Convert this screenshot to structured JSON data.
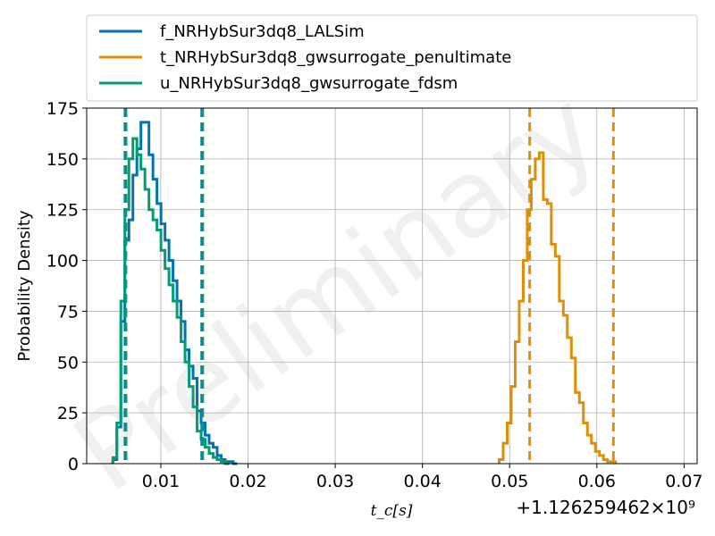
{
  "chart_data": {
    "type": "step-histogram",
    "watermark": "Preliminary",
    "ylabel": "Probability Density",
    "xlabel": "t_c[s]",
    "x_offset_label": "+1.126259462×10⁹",
    "xlim": [
      0.0015,
      0.0715
    ],
    "ylim": [
      0,
      175
    ],
    "x_ticks": [
      0.01,
      0.02,
      0.03,
      0.04,
      0.05,
      0.06,
      0.07
    ],
    "x_tick_labels": [
      "0.01",
      "0.02",
      "0.03",
      "0.04",
      "0.05",
      "0.06",
      "0.07"
    ],
    "y_ticks": [
      0,
      25,
      50,
      75,
      100,
      125,
      150,
      175
    ],
    "y_tick_labels": [
      "0",
      "25",
      "50",
      "75",
      "100",
      "125",
      "150",
      "175"
    ],
    "grid": true,
    "legend_position": "top",
    "series": [
      {
        "name": "f_NRHybSur3dq8_LALSim",
        "color": "#0173b2",
        "bin_start": 0.0045,
        "bin_width": 0.00046,
        "values": [
          2,
          18,
          70,
          110,
          120,
          142,
          155,
          168,
          168,
          152,
          140,
          128,
          118,
          110,
          100,
          90,
          80,
          70,
          56,
          48,
          42,
          26,
          20,
          14,
          10,
          8,
          4,
          2,
          1,
          1,
          0
        ],
        "interval": [
          0.0059,
          0.0147
        ]
      },
      {
        "name": "t_NRHybSur3dq8_gwsurrogate_penultimate",
        "color": "#de8f05",
        "bin_start": 0.0488,
        "bin_width": 0.00046,
        "values": [
          2,
          10,
          20,
          38,
          60,
          80,
          100,
          125,
          140,
          150,
          153,
          130,
          128,
          108,
          102,
          80,
          73,
          62,
          52,
          35,
          30,
          20,
          14,
          10,
          6,
          4,
          2,
          1,
          1
        ],
        "interval": [
          0.0523,
          0.0619
        ]
      },
      {
        "name": "u_NRHybSur3dq8_gwsurrogate_fdsm",
        "color": "#029e73",
        "bin_start": 0.0045,
        "bin_width": 0.00046,
        "values": [
          3,
          20,
          80,
          125,
          150,
          160,
          152,
          145,
          135,
          125,
          120,
          115,
          105,
          96,
          88,
          80,
          72,
          60,
          50,
          38,
          28,
          16,
          12,
          8,
          5,
          3,
          2,
          1,
          0
        ],
        "interval": [
          0.006,
          0.0148
        ]
      }
    ]
  }
}
